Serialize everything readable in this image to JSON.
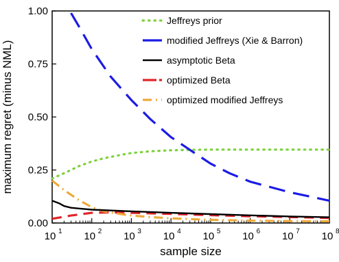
{
  "chart_data": {
    "type": "line",
    "xlabel": "sample size",
    "ylabel": "maximum regret (minus NML)",
    "x_scale": "log",
    "xlim": [
      10,
      100000000
    ],
    "ylim": [
      0,
      1.0
    ],
    "x_tick_values": [
      10,
      100,
      1000,
      10000,
      100000,
      1000000,
      10000000,
      100000000
    ],
    "x_tick_labels": [
      {
        "base": "10",
        "exp": "1"
      },
      {
        "base": "10",
        "exp": "2"
      },
      {
        "base": "10",
        "exp": "3"
      },
      {
        "base": "10",
        "exp": "4"
      },
      {
        "base": "10",
        "exp": "5"
      },
      {
        "base": "10",
        "exp": "6"
      },
      {
        "base": "10",
        "exp": "7"
      },
      {
        "base": "10",
        "exp": "8"
      }
    ],
    "y_ticks": [
      0,
      0.25,
      0.5,
      0.75,
      1.0
    ],
    "y_tick_labels": [
      "0.00",
      "0.25",
      "0.50",
      "0.75",
      "1.00"
    ],
    "grid": false,
    "legend_position": "top-right",
    "series": [
      {
        "name": "Jeffreys prior",
        "color": "#7dd13b",
        "dash": "dotted",
        "x": [
          10,
          20,
          50,
          100,
          200,
          500,
          1000,
          3000,
          10000,
          30000,
          100000,
          1000000,
          10000000,
          100000000
        ],
        "y": [
          0.21,
          0.235,
          0.27,
          0.29,
          0.305,
          0.32,
          0.33,
          0.338,
          0.343,
          0.345,
          0.346,
          0.346,
          0.346,
          0.346
        ]
      },
      {
        "name": "modified Jeffreys (Xie & Barron)",
        "color": "#1b1be6",
        "dash": "long-dash",
        "x": [
          30,
          50,
          100,
          300,
          1000,
          3000,
          10000,
          30000,
          100000,
          300000,
          1000000,
          10000000,
          100000000
        ],
        "y": [
          0.99,
          0.92,
          0.82,
          0.69,
          0.58,
          0.49,
          0.405,
          0.345,
          0.28,
          0.235,
          0.195,
          0.145,
          0.105
        ]
      },
      {
        "name": "asymptotic Beta",
        "color": "#000000",
        "dash": "solid",
        "x": [
          10,
          15,
          20,
          30,
          50,
          100,
          1000,
          10000,
          100000,
          1000000,
          10000000,
          100000000
        ],
        "y": [
          0.105,
          0.093,
          0.08,
          0.072,
          0.068,
          0.063,
          0.055,
          0.048,
          0.042,
          0.036,
          0.031,
          0.027
        ]
      },
      {
        "name": "optimized Beta",
        "color": "#e0242a",
        "dash": "dashed",
        "x": [
          10,
          30,
          100,
          300,
          1000,
          10000,
          100000,
          1000000,
          10000000,
          100000000
        ],
        "y": [
          0.02,
          0.035,
          0.048,
          0.05,
          0.048,
          0.043,
          0.037,
          0.032,
          0.028,
          0.024
        ]
      },
      {
        "name": "optimized modified Jeffreys",
        "color": "#eea93a",
        "dash": "dash-dot",
        "x": [
          10,
          20,
          50,
          100,
          200,
          500,
          1000,
          3000,
          10000,
          100000,
          1000000,
          10000000,
          100000000
        ],
        "y": [
          0.2,
          0.155,
          0.105,
          0.075,
          0.055,
          0.043,
          0.035,
          0.028,
          0.022,
          0.015,
          0.011,
          0.009,
          0.008
        ]
      }
    ]
  }
}
